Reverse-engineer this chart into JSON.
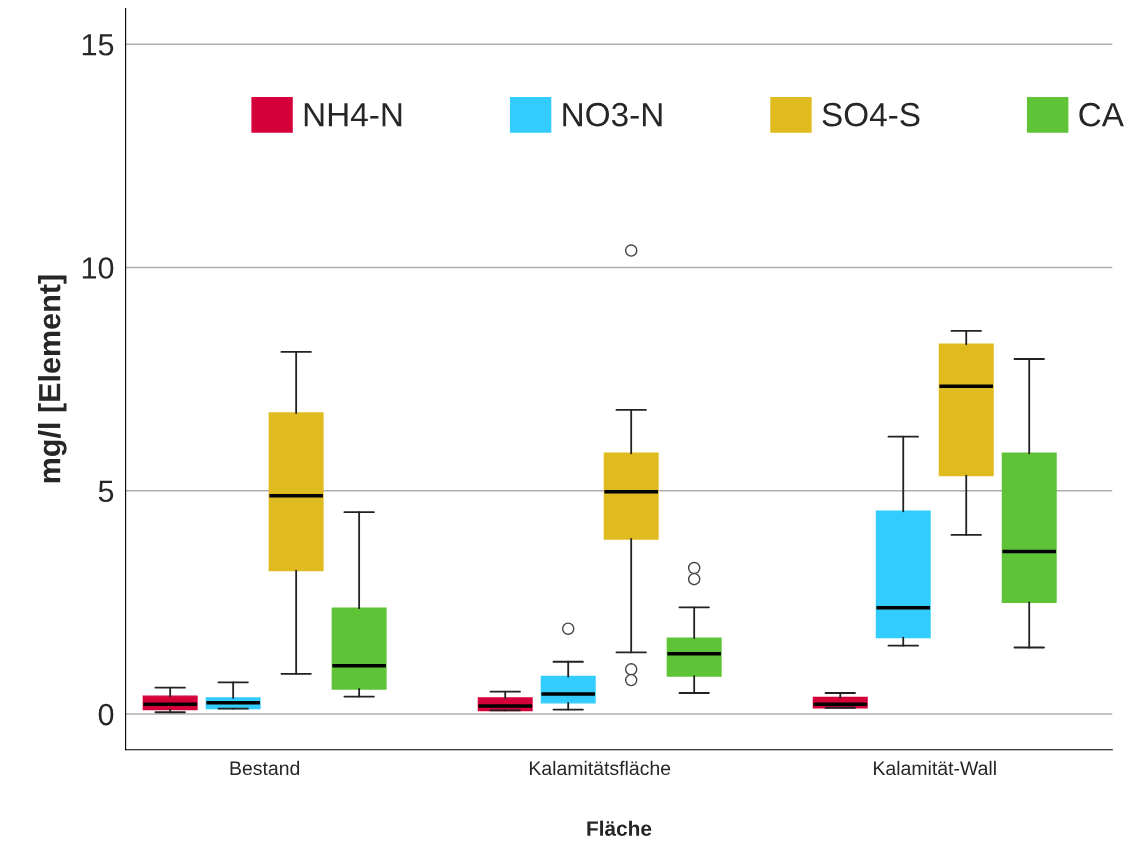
{
  "chart_data": {
    "type": "box",
    "xlabel": "Fläche",
    "ylabel": "mg/l [Element]",
    "categories": [
      "Bestand",
      "Kalamitätsfläche",
      "Kalamität-Wall"
    ],
    "ylim": [
      -0.8,
      15.8
    ],
    "yticks": [
      0,
      5,
      10,
      15
    ],
    "grid": "y",
    "legend": "top",
    "series": [
      {
        "name": "NH4-N",
        "color": "#d5003a",
        "boxes": [
          {
            "low": 0.04,
            "q1": 0.1,
            "median": 0.22,
            "q3": 0.4,
            "high": 0.59
          },
          {
            "low": 0.08,
            "q1": 0.08,
            "median": 0.18,
            "q3": 0.36,
            "high": 0.5
          },
          {
            "low": 0.14,
            "q1": 0.14,
            "median": 0.22,
            "q3": 0.37,
            "high": 0.47
          }
        ]
      },
      {
        "name": "NO3-N",
        "color": "#33ccff",
        "boxes": [
          {
            "low": 0.12,
            "q1": 0.12,
            "median": 0.25,
            "q3": 0.36,
            "high": 0.71
          },
          {
            "low": 0.1,
            "q1": 0.25,
            "median": 0.45,
            "q3": 0.84,
            "high": 1.17,
            "outliers": [
              1.91
            ]
          },
          {
            "low": 1.53,
            "q1": 1.71,
            "median": 2.38,
            "q3": 4.54,
            "high": 6.21
          }
        ]
      },
      {
        "name": "SO4-S",
        "color": "#e0bb20",
        "boxes": [
          {
            "low": 0.9,
            "q1": 3.21,
            "median": 4.89,
            "q3": 6.74,
            "high": 8.11
          },
          {
            "low": 1.38,
            "q1": 3.92,
            "median": 4.98,
            "q3": 5.84,
            "high": 6.81,
            "outliers": [
              10.38,
              1.0,
              0.76
            ]
          },
          {
            "low": 4.01,
            "q1": 5.34,
            "median": 7.34,
            "q3": 8.28,
            "high": 8.58
          }
        ]
      },
      {
        "name": "CA",
        "color": "#5fc337",
        "boxes": [
          {
            "low": 0.39,
            "q1": 0.56,
            "median": 1.08,
            "q3": 2.37,
            "high": 4.52
          },
          {
            "low": 0.47,
            "q1": 0.85,
            "median": 1.35,
            "q3": 1.7,
            "high": 2.39,
            "outliers": [
              3.27,
              3.02
            ]
          },
          {
            "low": 1.49,
            "q1": 2.5,
            "median": 3.64,
            "q3": 5.84,
            "high": 7.95
          }
        ]
      }
    ]
  }
}
